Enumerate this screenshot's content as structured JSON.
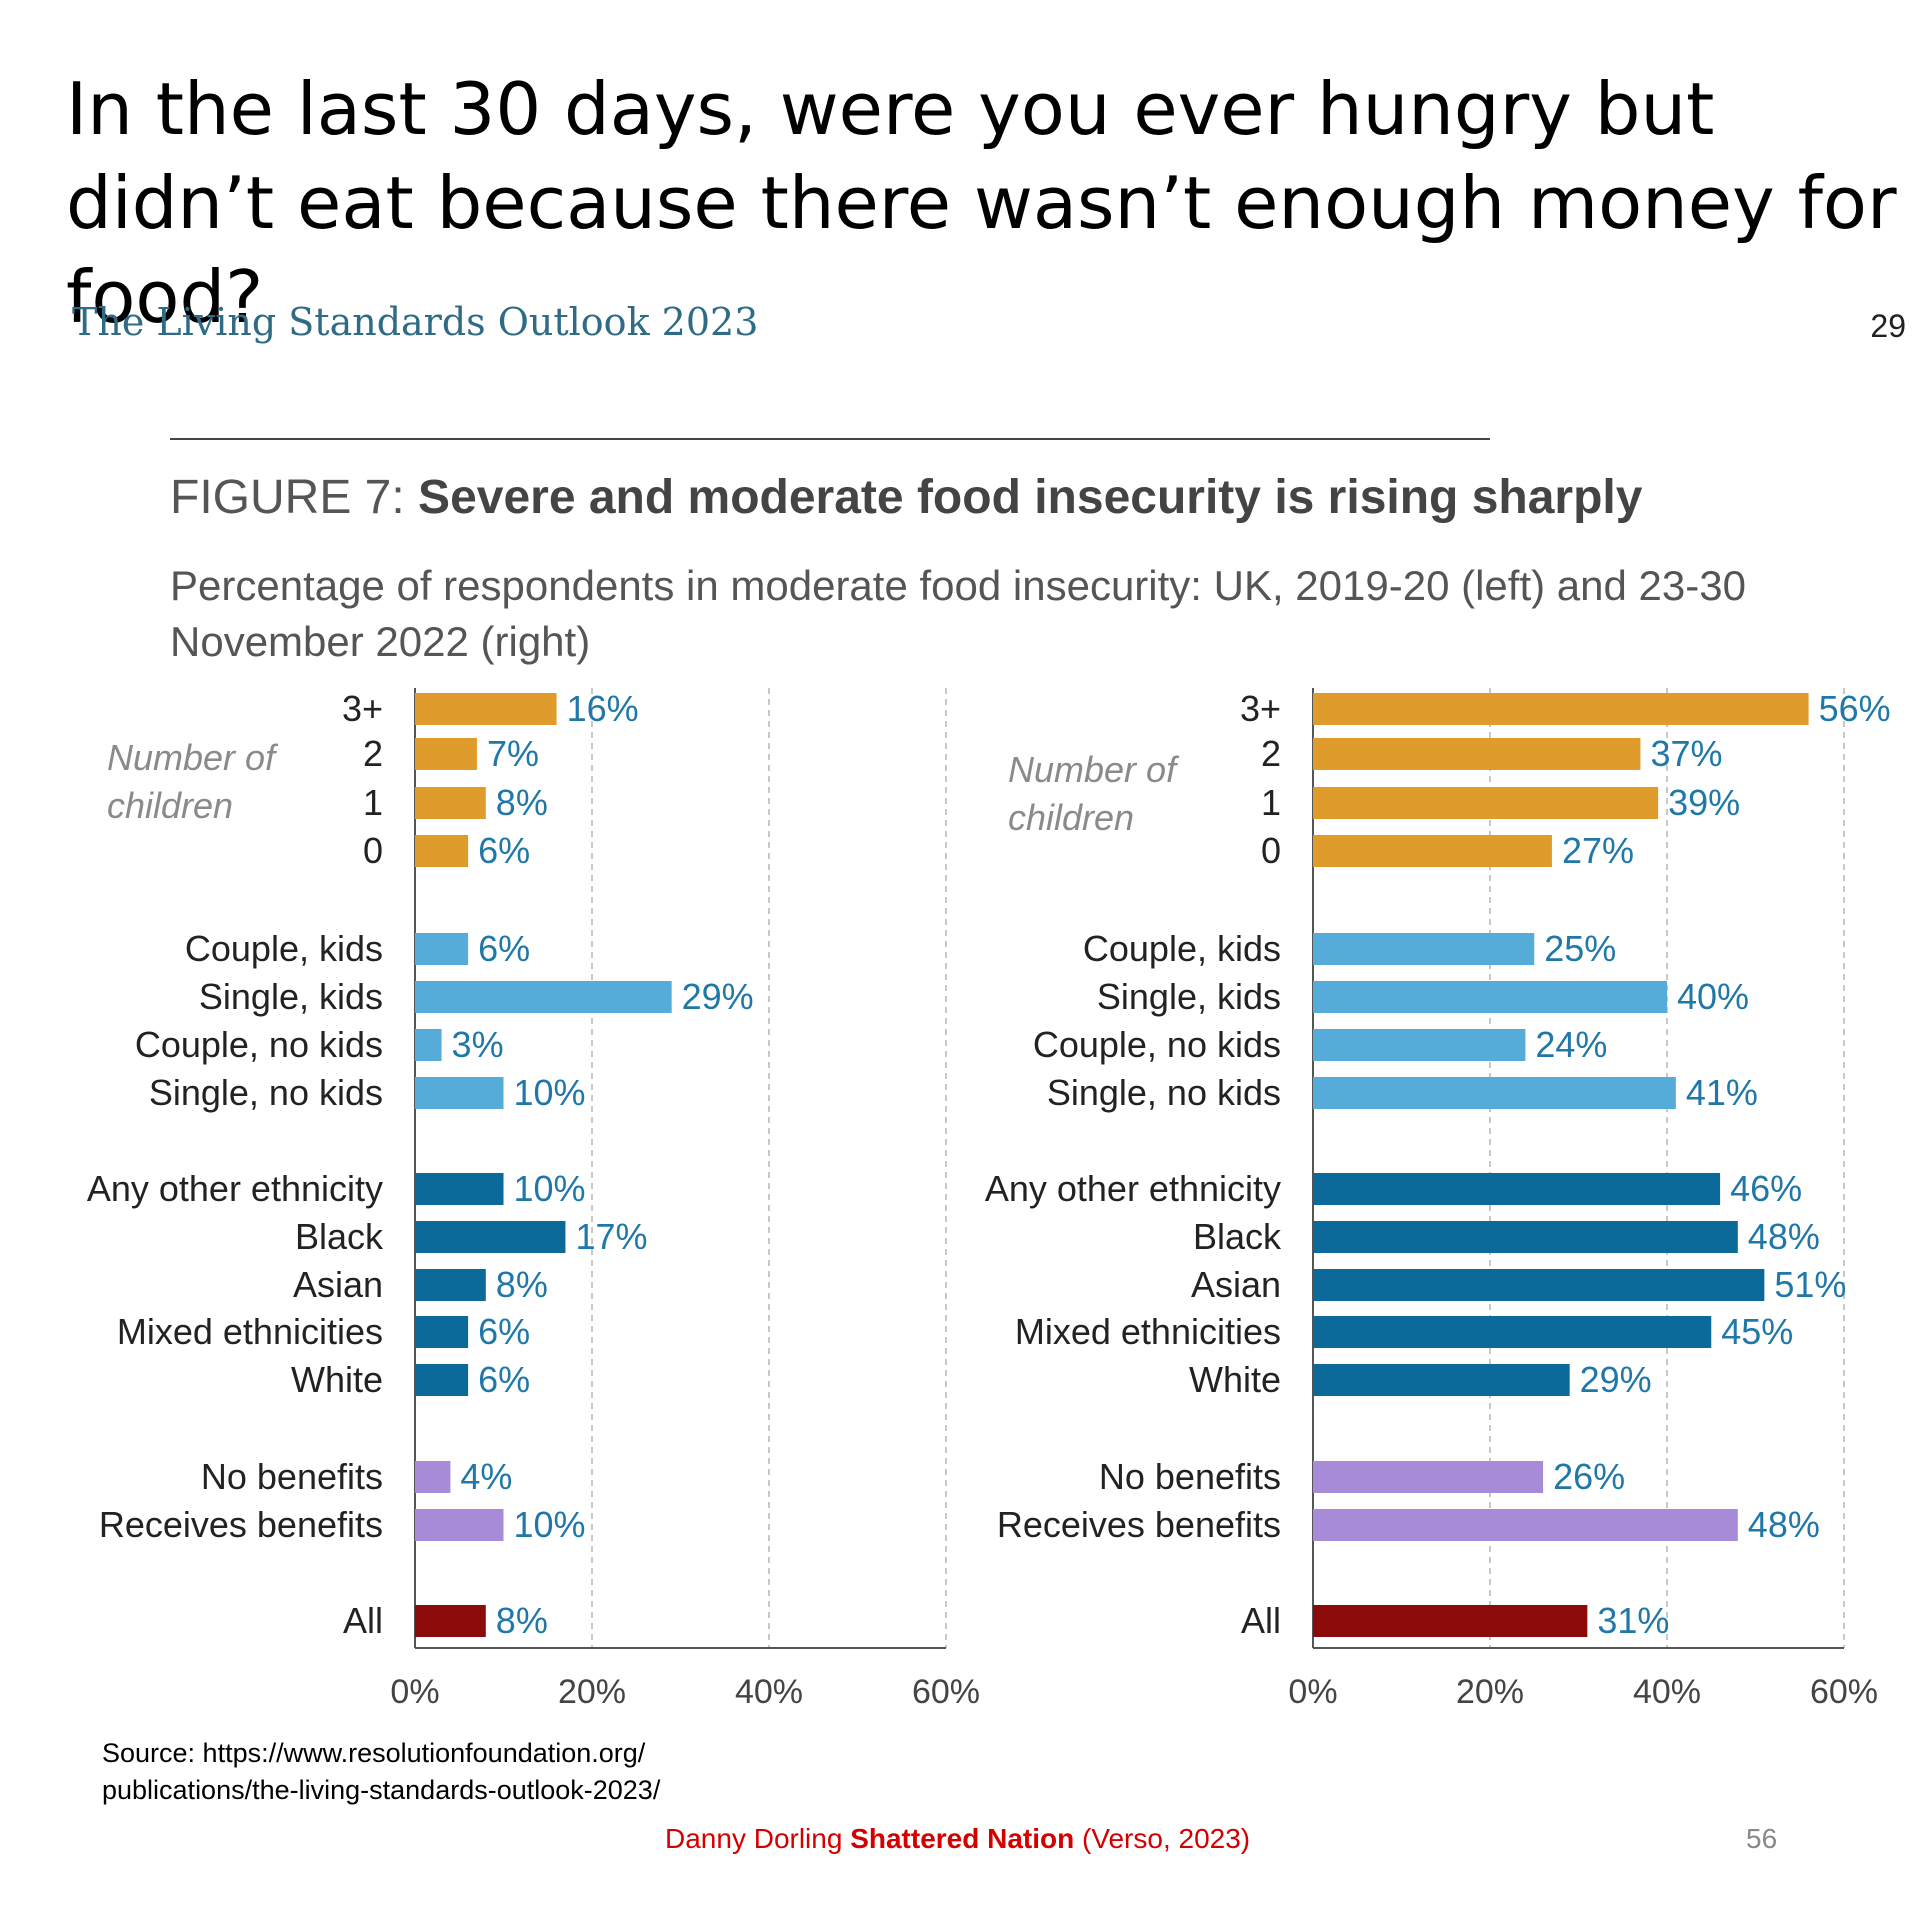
{
  "slide": {
    "title": "In the last 30 days, were you ever hungry but didn’t eat because there wasn’t enough money for food?",
    "report_title": "The Living Standards Outlook 2023",
    "report_page": "29",
    "source_line1": "Source: https://www.resolutionfoundation.org/",
    "source_line2": "publications/the-living-standards-outlook-2023/",
    "credit_author": "Danny Dorling",
    "credit_book": "Shattered Nation",
    "credit_publisher": "(Verso, 2023)",
    "slide_number": "56"
  },
  "figure": {
    "label": "FIGURE 7:",
    "title": "Severe and moderate food insecurity is rising sharply",
    "subtitle": "Percentage of respondents in moderate food insecurity: UK, 2019-20 (left) and 23-30 November 2022 (right)",
    "group_label": "Number of children"
  },
  "colors": {
    "children": "#e09b2d",
    "household": "#55acd8",
    "ethnicity": "#0b6a9a",
    "benefits": "#a78bd9",
    "all": "#8b0a0a",
    "value_text": "#1f78a8",
    "label_text": "#222222",
    "italic_label": "#8a8a8a"
  },
  "chart_data": [
    {
      "type": "bar",
      "orientation": "horizontal",
      "panel": "2019-20 (left)",
      "categories": [
        "3+",
        "2",
        "1",
        "0",
        "Couple, kids",
        "Single, kids",
        "Couple, no kids",
        "Single, no kids",
        "Any other ethnicity",
        "Black",
        "Asian",
        "Mixed ethnicities",
        "White",
        "No benefits",
        "Receives benefits",
        "All"
      ],
      "groups": [
        "children",
        "children",
        "children",
        "children",
        "household",
        "household",
        "household",
        "household",
        "ethnicity",
        "ethnicity",
        "ethnicity",
        "ethnicity",
        "ethnicity",
        "benefits",
        "benefits",
        "all"
      ],
      "values": [
        16,
        7,
        8,
        6,
        6,
        29,
        3,
        10,
        10,
        17,
        8,
        6,
        6,
        4,
        10,
        8
      ],
      "value_labels": [
        "16%",
        "7%",
        "8%",
        "6%",
        "6%",
        "29%",
        "3%",
        "10%",
        "10%",
        "17%",
        "8%",
        "6%",
        "6%",
        "4%",
        "10%",
        "8%"
      ],
      "xlim": [
        0,
        60
      ],
      "xticks": [
        "0%",
        "20%",
        "40%",
        "60%"
      ],
      "grid": "vertical dashed"
    },
    {
      "type": "bar",
      "orientation": "horizontal",
      "panel": "23-30 November 2022 (right)",
      "categories": [
        "3+",
        "2",
        "1",
        "0",
        "Couple, kids",
        "Single, kids",
        "Couple, no kids",
        "Single, no kids",
        "Any other ethnicity",
        "Black",
        "Asian",
        "Mixed ethnicities",
        "White",
        "No benefits",
        "Receives benefits",
        "All"
      ],
      "groups": [
        "children",
        "children",
        "children",
        "children",
        "household",
        "household",
        "household",
        "household",
        "ethnicity",
        "ethnicity",
        "ethnicity",
        "ethnicity",
        "ethnicity",
        "benefits",
        "benefits",
        "all"
      ],
      "values": [
        56,
        37,
        39,
        27,
        25,
        40,
        24,
        41,
        46,
        48,
        51,
        45,
        29,
        26,
        48,
        31
      ],
      "value_labels": [
        "56%",
        "37%",
        "39%",
        "27%",
        "25%",
        "40%",
        "24%",
        "41%",
        "46%",
        "48%",
        "51%",
        "45%",
        "29%",
        "26%",
        "48%",
        "31%"
      ],
      "xlim": [
        0,
        60
      ],
      "xticks": [
        "0%",
        "20%",
        "40%",
        "60%"
      ],
      "grid": "vertical dashed"
    }
  ]
}
